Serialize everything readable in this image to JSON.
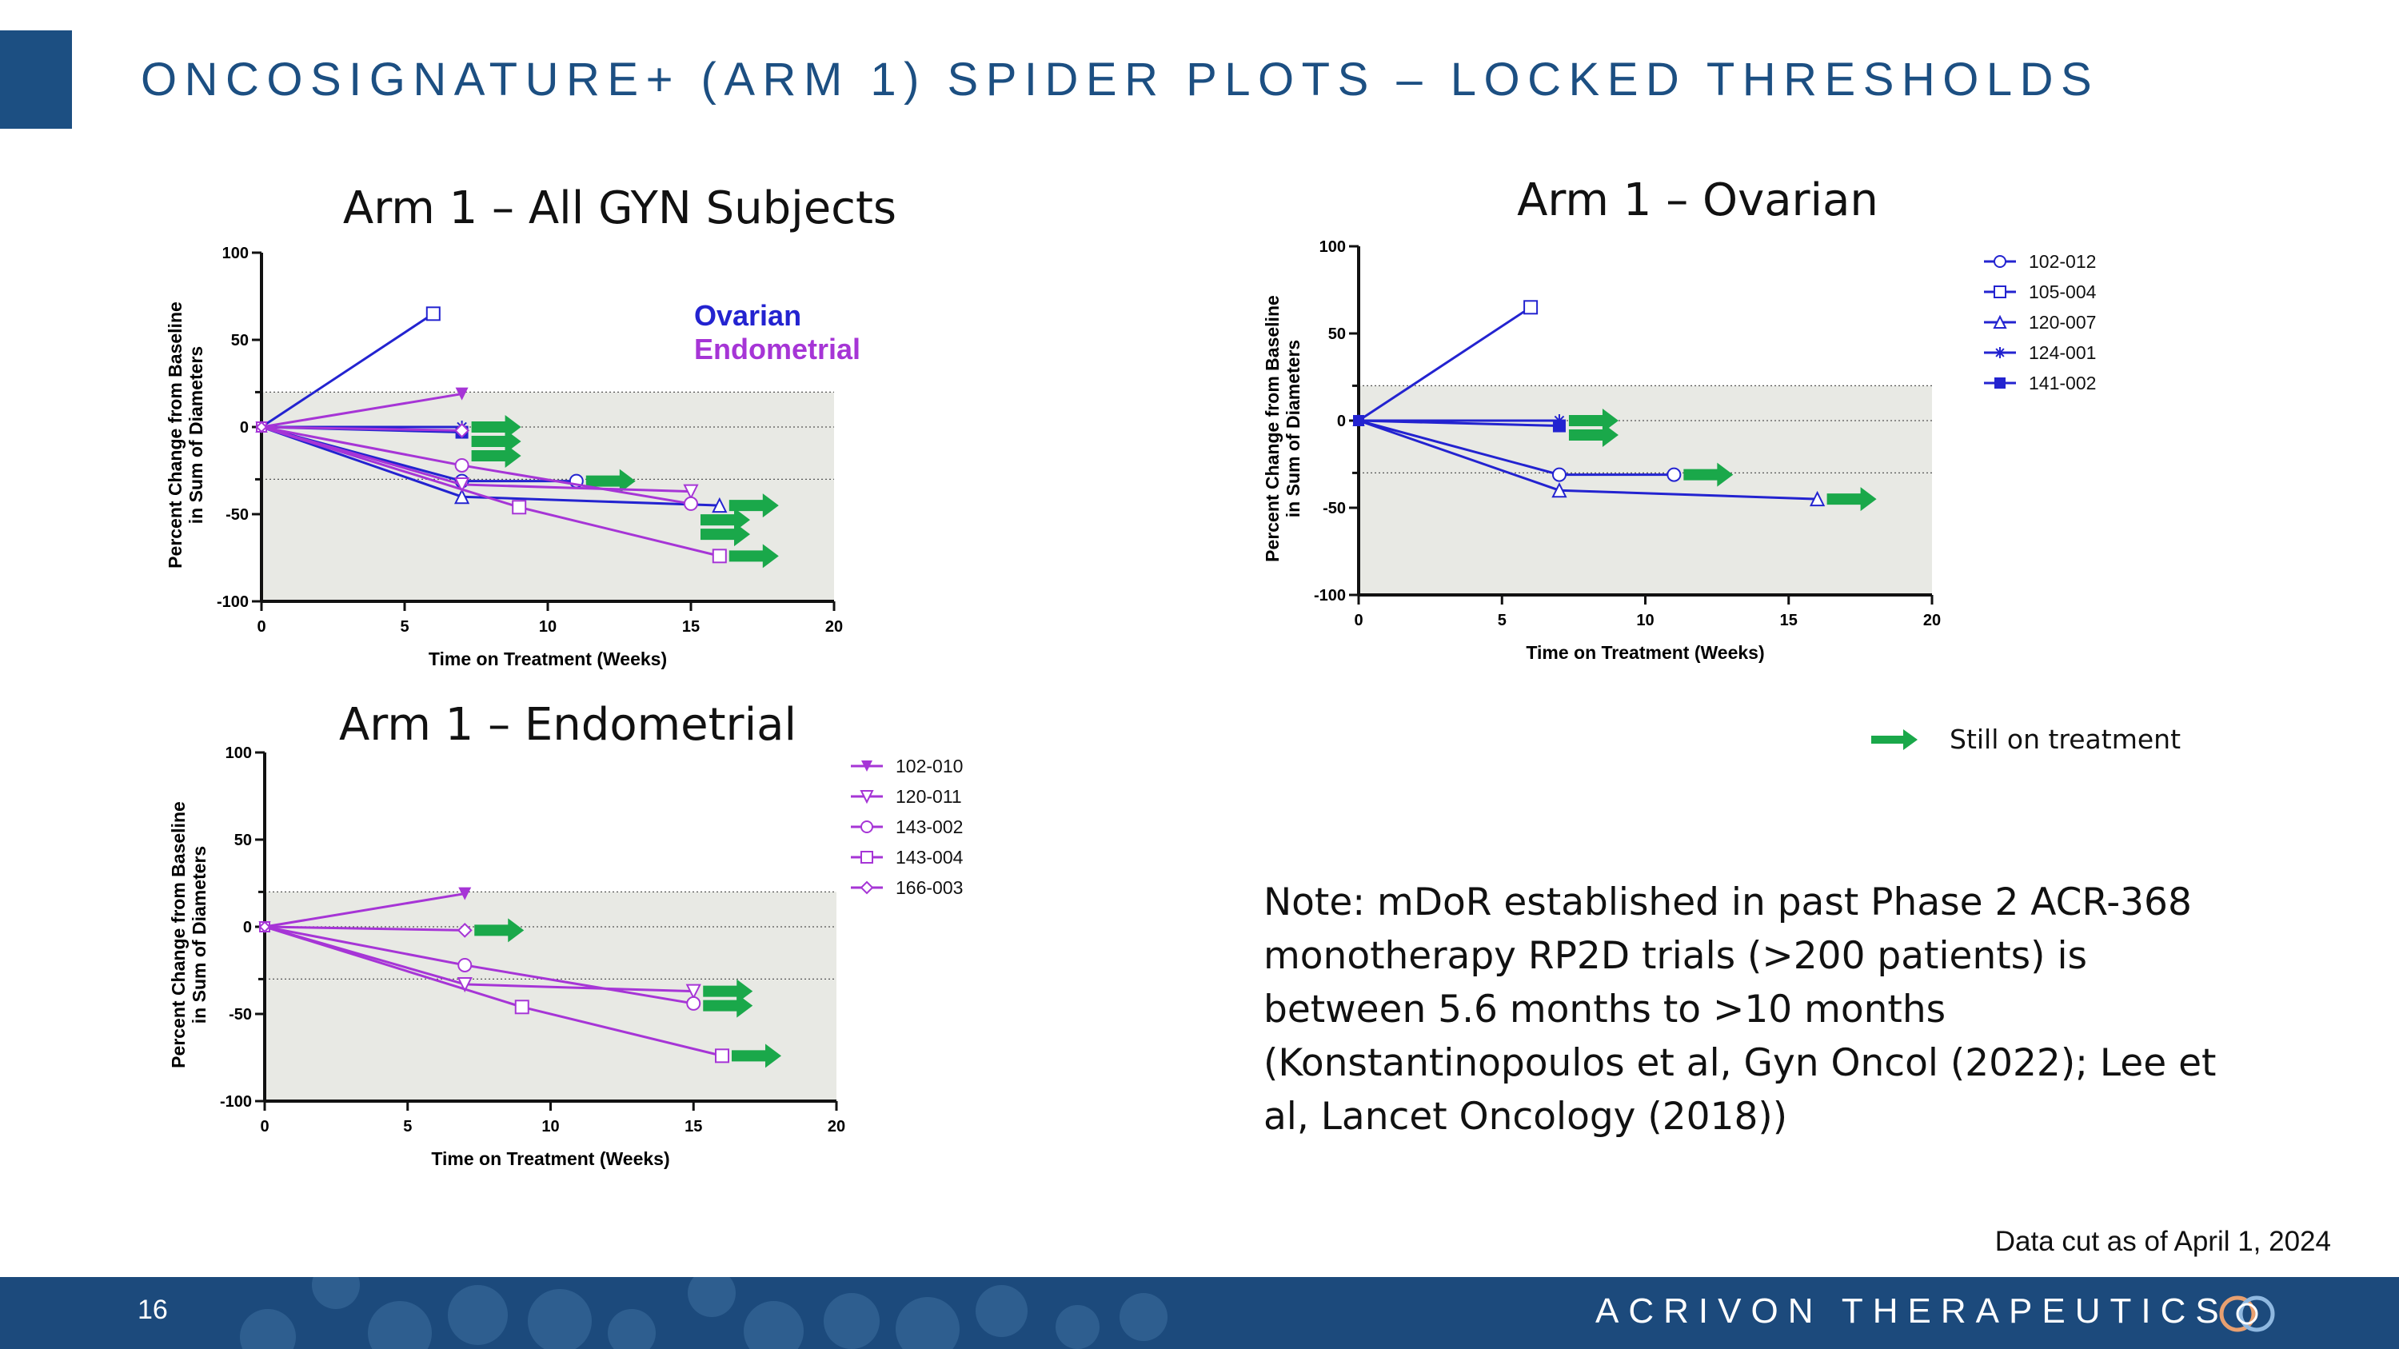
{
  "header": {
    "title": "ONCOSIGNATURE+ (ARM 1) SPIDER PLOTS – LOCKED THRESHOLDS"
  },
  "colors": {
    "brand": "#1c4f82",
    "ovarian": "#2323d0",
    "endometrial": "#a635d6",
    "ongoing_arrow": "#1aa84a",
    "shaded_region": "#e8e9e4"
  },
  "chart_data": [
    {
      "id": "all",
      "type": "line",
      "title": "Arm 1 – All GYN Subjects",
      "xlabel": "Time on Treatment (Weeks)",
      "ylabel": [
        "Percent Change from Baseline",
        "in Sum of Diameters"
      ],
      "xlim": [
        0,
        20
      ],
      "ylim": [
        -100,
        100
      ],
      "xticks": [
        "0",
        "5",
        "10",
        "15",
        "20"
      ],
      "yticks": [
        "100",
        "50",
        "0",
        "-50",
        "-100"
      ],
      "reference_lines": [
        20,
        0,
        -30
      ],
      "shaded_range": [
        -100,
        20
      ],
      "group_labels": [
        {
          "text": "Ovarian",
          "color": "#2323d0"
        },
        {
          "text": "Endometrial",
          "color": "#a635d6"
        }
      ],
      "series": [
        {
          "id": "102-012",
          "group": "ovarian",
          "marker": "circle",
          "x": [
            0,
            7,
            11
          ],
          "y": [
            0,
            -31,
            -31
          ],
          "ongoing": true
        },
        {
          "id": "105-004",
          "group": "ovarian",
          "marker": "square",
          "x": [
            0,
            6
          ],
          "y": [
            0,
            65
          ],
          "ongoing": false
        },
        {
          "id": "120-007",
          "group": "ovarian",
          "marker": "triangle-up",
          "x": [
            0,
            7,
            16
          ],
          "y": [
            0,
            -40,
            -45
          ],
          "ongoing": true
        },
        {
          "id": "124-001",
          "group": "ovarian",
          "marker": "star",
          "x": [
            0,
            7
          ],
          "y": [
            0,
            0
          ],
          "ongoing": true
        },
        {
          "id": "141-002",
          "group": "ovarian",
          "marker": "square-filled",
          "x": [
            0,
            7
          ],
          "y": [
            0,
            -3
          ],
          "ongoing": true
        },
        {
          "id": "102-010",
          "group": "endometrial",
          "marker": "triangle-down-filled",
          "x": [
            0,
            7
          ],
          "y": [
            0,
            19
          ],
          "ongoing": false
        },
        {
          "id": "120-011",
          "group": "endometrial",
          "marker": "triangle-down",
          "x": [
            0,
            7,
            15
          ],
          "y": [
            0,
            -33,
            -37
          ],
          "ongoing": true
        },
        {
          "id": "143-002",
          "group": "endometrial",
          "marker": "circle",
          "x": [
            0,
            7,
            15
          ],
          "y": [
            0,
            -22,
            -44
          ],
          "ongoing": true
        },
        {
          "id": "143-004",
          "group": "endometrial",
          "marker": "square",
          "x": [
            0,
            9,
            16
          ],
          "y": [
            0,
            -46,
            -74
          ],
          "ongoing": true
        },
        {
          "id": "166-003",
          "group": "endometrial",
          "marker": "diamond",
          "x": [
            0,
            7
          ],
          "y": [
            0,
            -2
          ],
          "ongoing": true
        }
      ]
    },
    {
      "id": "ovarian",
      "type": "line",
      "title": "Arm 1 – Ovarian",
      "xlabel": "Time on Treatment (Weeks)",
      "ylabel": [
        "Percent Change from Baseline",
        "in Sum of Diameters"
      ],
      "xlim": [
        0,
        20
      ],
      "ylim": [
        -100,
        100
      ],
      "xticks": [
        "0",
        "5",
        "10",
        "15",
        "20"
      ],
      "yticks": [
        "100",
        "50",
        "0",
        "-50",
        "-100"
      ],
      "reference_lines": [
        20,
        0,
        -30
      ],
      "shaded_range": [
        -100,
        20
      ],
      "legend": "right",
      "series": [
        {
          "name": "102-012",
          "group": "ovarian",
          "marker": "circle",
          "x": [
            0,
            7,
            11
          ],
          "y": [
            0,
            -31,
            -31
          ],
          "ongoing": true
        },
        {
          "name": "105-004",
          "group": "ovarian",
          "marker": "square",
          "x": [
            0,
            6
          ],
          "y": [
            0,
            65
          ],
          "ongoing": false
        },
        {
          "name": "120-007",
          "group": "ovarian",
          "marker": "triangle-up",
          "x": [
            0,
            7,
            16
          ],
          "y": [
            0,
            -40,
            -45
          ],
          "ongoing": true
        },
        {
          "name": "124-001",
          "group": "ovarian",
          "marker": "star",
          "x": [
            0,
            7
          ],
          "y": [
            0,
            0
          ],
          "ongoing": true
        },
        {
          "name": "141-002",
          "group": "ovarian",
          "marker": "square-filled",
          "x": [
            0,
            7
          ],
          "y": [
            0,
            -3
          ],
          "ongoing": true
        }
      ]
    },
    {
      "id": "endometrial",
      "type": "line",
      "title": "Arm 1 – Endometrial",
      "xlabel": "Time on Treatment (Weeks)",
      "ylabel": [
        "Percent Change from Baseline",
        "in Sum of Diameters"
      ],
      "xlim": [
        0,
        20
      ],
      "ylim": [
        -100,
        100
      ],
      "xticks": [
        "0",
        "5",
        "10",
        "15",
        "20"
      ],
      "yticks": [
        "100",
        "50",
        "0",
        "-50",
        "-100"
      ],
      "reference_lines": [
        20,
        0,
        -30
      ],
      "shaded_range": [
        -100,
        20
      ],
      "legend": "right",
      "series": [
        {
          "name": "102-010",
          "group": "endometrial",
          "marker": "triangle-down-filled",
          "x": [
            0,
            7
          ],
          "y": [
            0,
            19
          ],
          "ongoing": false
        },
        {
          "name": "120-011",
          "group": "endometrial",
          "marker": "triangle-down",
          "x": [
            0,
            7,
            15
          ],
          "y": [
            0,
            -33,
            -37
          ],
          "ongoing": true
        },
        {
          "name": "143-002",
          "group": "endometrial",
          "marker": "circle",
          "x": [
            0,
            7,
            15
          ],
          "y": [
            0,
            -22,
            -44
          ],
          "ongoing": true
        },
        {
          "name": "143-004",
          "group": "endometrial",
          "marker": "square",
          "x": [
            0,
            9,
            16
          ],
          "y": [
            0,
            -46,
            -74
          ],
          "ongoing": true
        },
        {
          "name": "166-003",
          "group": "endometrial",
          "marker": "diamond",
          "x": [
            0,
            7
          ],
          "y": [
            0,
            -2
          ],
          "ongoing": true
        }
      ]
    }
  ],
  "key": {
    "still_on_treatment": "Still on treatment",
    "icon": "green-right-arrow"
  },
  "note": {
    "lines": [
      "Note: mDoR established in past Phase 2 ACR-368",
      "monotherapy RP2D trials (>200 patients) is",
      "between 5.6 months to >10 months",
      "(Konstantinopoulos et al, Gyn Oncol (2022); Lee et",
      "al, Lancet Oncology (2018))"
    ]
  },
  "data_cut": "Data cut as of April 1, 2024",
  "footer": {
    "page_number": "16",
    "brand": "ACRIVON THERAPEUTICS",
    "logo_icon": "interlocking-rings-logo"
  }
}
